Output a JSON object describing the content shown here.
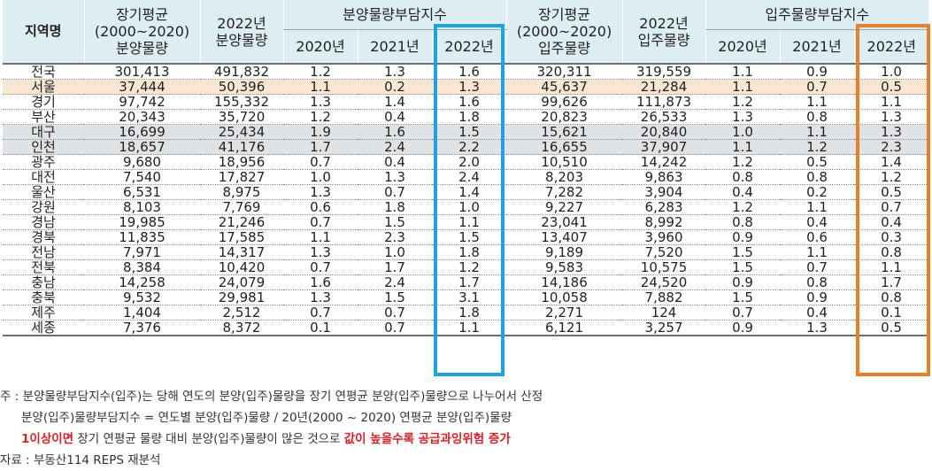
{
  "headers": {
    "region": "지역명",
    "avg_supply": "장기평균\n(2000~2020)\n분양물량",
    "supply_2022": "2022년\n분양물량",
    "supply_index_group": "분양물량부담지수",
    "avg_move": "장기평균\n(2000~2020)\n입주물량",
    "move_2022": "2022년\n입주물량",
    "move_index_group": "입주물량부담지수",
    "y2020": "2020년",
    "y2021": "2021년",
    "y2022": "2022년"
  },
  "rows": [
    {
      "region": "전국",
      "avg_supply": "301,413",
      "supply_2022": "491,832",
      "si2020": "1.2",
      "si2021": "1.3",
      "si2022": "1.6",
      "avg_move": "320,311",
      "move_2022": "319,559",
      "mi2020": "1.1",
      "mi2021": "0.9",
      "mi2022": "1.0"
    },
    {
      "region": "서울",
      "avg_supply": "37,444",
      "supply_2022": "50,396",
      "si2020": "1.1",
      "si2021": "0.2",
      "si2022": "1.3",
      "avg_move": "45,637",
      "move_2022": "21,284",
      "mi2020": "1.1",
      "mi2021": "0.7",
      "mi2022": "0.5"
    },
    {
      "region": "경기",
      "avg_supply": "97,742",
      "supply_2022": "155,332",
      "si2020": "1.3",
      "si2021": "1.4",
      "si2022": "1.6",
      "avg_move": "99,626",
      "move_2022": "111,873",
      "mi2020": "1.2",
      "mi2021": "1.1",
      "mi2022": "1.1"
    },
    {
      "region": "부산",
      "avg_supply": "20,343",
      "supply_2022": "35,720",
      "si2020": "1.2",
      "si2021": "0.4",
      "si2022": "1.8",
      "avg_move": "20,823",
      "move_2022": "26,533",
      "mi2020": "1.3",
      "mi2021": "0.8",
      "mi2022": "1.3"
    },
    {
      "region": "대구",
      "avg_supply": "16,699",
      "supply_2022": "25,434",
      "si2020": "1.9",
      "si2021": "1.6",
      "si2022": "1.5",
      "avg_move": "15,621",
      "move_2022": "20,840",
      "mi2020": "1.0",
      "mi2021": "1.1",
      "mi2022": "1.3"
    },
    {
      "region": "인천",
      "avg_supply": "18,657",
      "supply_2022": "41,176",
      "si2020": "1.7",
      "si2021": "2.4",
      "si2022": "2.2",
      "avg_move": "16,655",
      "move_2022": "37,907",
      "mi2020": "1.1",
      "mi2021": "1.2",
      "mi2022": "2.3"
    },
    {
      "region": "광주",
      "avg_supply": "9,680",
      "supply_2022": "18,956",
      "si2020": "0.7",
      "si2021": "0.4",
      "si2022": "2.0",
      "avg_move": "10,510",
      "move_2022": "14,242",
      "mi2020": "1.2",
      "mi2021": "0.5",
      "mi2022": "1.4"
    },
    {
      "region": "대전",
      "avg_supply": "7,540",
      "supply_2022": "17,827",
      "si2020": "1.0",
      "si2021": "1.3",
      "si2022": "2.4",
      "avg_move": "8,203",
      "move_2022": "9,863",
      "mi2020": "0.8",
      "mi2021": "0.8",
      "mi2022": "1.2"
    },
    {
      "region": "울산",
      "avg_supply": "6,531",
      "supply_2022": "8,975",
      "si2020": "1.3",
      "si2021": "0.7",
      "si2022": "1.4",
      "avg_move": "7,282",
      "move_2022": "3,904",
      "mi2020": "0.4",
      "mi2021": "0.2",
      "mi2022": "0.5"
    },
    {
      "region": "강원",
      "avg_supply": "8,103",
      "supply_2022": "7,769",
      "si2020": "0.6",
      "si2021": "1.8",
      "si2022": "1.0",
      "avg_move": "9,227",
      "move_2022": "6,283",
      "mi2020": "1.2",
      "mi2021": "1.1",
      "mi2022": "0.7"
    },
    {
      "region": "경남",
      "avg_supply": "19,985",
      "supply_2022": "21,246",
      "si2020": "0.7",
      "si2021": "1.5",
      "si2022": "1.1",
      "avg_move": "23,041",
      "move_2022": "8,992",
      "mi2020": "0.8",
      "mi2021": "0.4",
      "mi2022": "0.4"
    },
    {
      "region": "경북",
      "avg_supply": "11,835",
      "supply_2022": "17,585",
      "si2020": "1.1",
      "si2021": "2.3",
      "si2022": "1.5",
      "avg_move": "13,407",
      "move_2022": "3,960",
      "mi2020": "0.9",
      "mi2021": "0.6",
      "mi2022": "0.3"
    },
    {
      "region": "전남",
      "avg_supply": "7,971",
      "supply_2022": "14,317",
      "si2020": "1.3",
      "si2021": "1.0",
      "si2022": "1.8",
      "avg_move": "9,189",
      "move_2022": "7,520",
      "mi2020": "1.5",
      "mi2021": "1.1",
      "mi2022": "0.8"
    },
    {
      "region": "전북",
      "avg_supply": "8,384",
      "supply_2022": "10,420",
      "si2020": "0.7",
      "si2021": "1.7",
      "si2022": "1.2",
      "avg_move": "9,583",
      "move_2022": "10,575",
      "mi2020": "1.5",
      "mi2021": "0.7",
      "mi2022": "1.1"
    },
    {
      "region": "충남",
      "avg_supply": "14,258",
      "supply_2022": "24,079",
      "si2020": "1.6",
      "si2021": "2.4",
      "si2022": "1.7",
      "avg_move": "14,186",
      "move_2022": "24,520",
      "mi2020": "0.9",
      "mi2021": "0.8",
      "mi2022": "1.7"
    },
    {
      "region": "충북",
      "avg_supply": "9,532",
      "supply_2022": "29,981",
      "si2020": "1.3",
      "si2021": "1.5",
      "si2022": "3.1",
      "avg_move": "10,058",
      "move_2022": "7,882",
      "mi2020": "1.5",
      "mi2021": "0.9",
      "mi2022": "0.8"
    },
    {
      "region": "제주",
      "avg_supply": "1,404",
      "supply_2022": "2,512",
      "si2020": "0.7",
      "si2021": "0.7",
      "si2022": "1.8",
      "avg_move": "2,271",
      "move_2022": "124",
      "mi2020": "0.7",
      "mi2021": "0.4",
      "mi2022": "0.1"
    },
    {
      "region": "세종",
      "avg_supply": "7,376",
      "supply_2022": "8,372",
      "si2020": "0.1",
      "si2021": "0.7",
      "si2022": "1.1",
      "avg_move": "6,121",
      "move_2022": "3,257",
      "mi2020": "0.9",
      "mi2021": "1.3",
      "mi2022": "0.5"
    }
  ],
  "notes": {
    "line1": "주 : 분양물량부담지수(입주)는 당해 연도의 분양(입주)물량을 장기 연평균 분양(입주)물량으로 나누어서 산정",
    "line2": "분양(입주)물량부담지수 = 연도별 분양(입주)물량 / 20년(2000 ~ 2020) 연평균 분양(입주)물량",
    "line3_red1": "1이상이면",
    "line3_mid": " 장기 연평균 물량 대비 분양(입주)물량이 많은 것으로 ",
    "line3_red2": "값이 높을수록 공급과잉위험 증가",
    "source": "자료 : 부동산114 REPS 재분석"
  },
  "colors": {
    "header_bg": "#ddeef2",
    "seoul_row_bg": "#fbe6d4",
    "grey_row_bg": "#dfe3e5",
    "highlight_blue": "#1fa3de",
    "highlight_orange": "#e57f29",
    "note_red": "#d62027"
  }
}
